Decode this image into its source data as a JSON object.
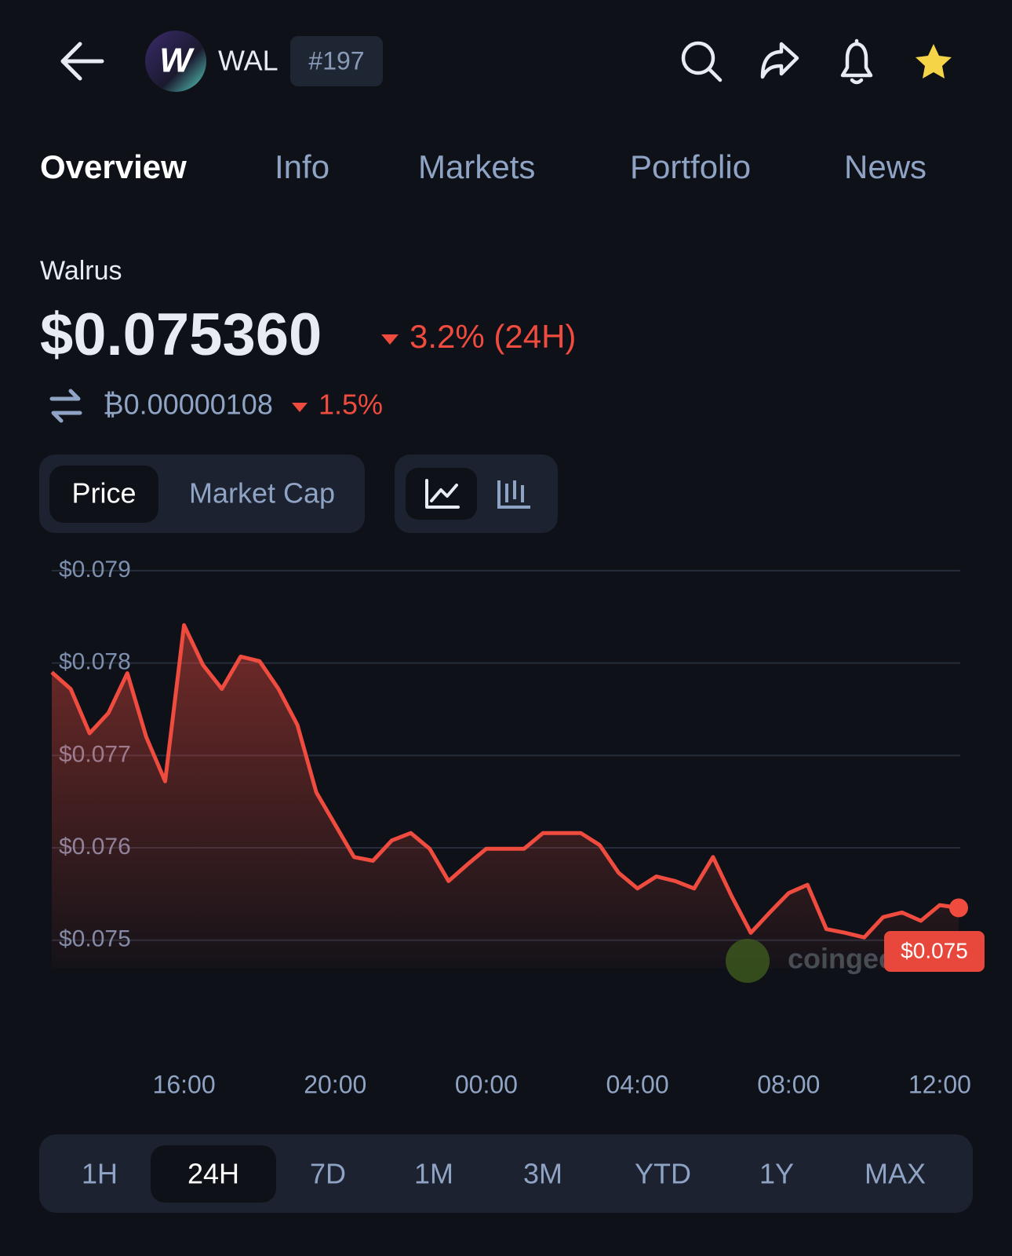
{
  "header": {
    "symbol": "WAL",
    "rank": "#197"
  },
  "tabs": [
    "Overview",
    "Info",
    "Markets",
    "Portfolio",
    "News"
  ],
  "active_tab": "Overview",
  "coin_name": "Walrus",
  "price": "$0.075360",
  "change_24h": "3.2% (24H)",
  "btc_price": "₿0.00000108",
  "btc_change": "1.5%",
  "chart_toggle": [
    "Price",
    "Market Cap"
  ],
  "active_toggle": "Price",
  "ranges": [
    "1H",
    "24H",
    "7D",
    "1M",
    "3M",
    "YTD",
    "1Y",
    "MAX"
  ],
  "active_range": "24H",
  "chart_data": {
    "type": "line",
    "categories": [
      null,
      null,
      null,
      null,
      null,
      null,
      null,
      "16:00",
      null,
      null,
      null,
      null,
      null,
      null,
      null,
      "20:00",
      null,
      null,
      null,
      null,
      null,
      null,
      null,
      "00:00",
      null,
      null,
      null,
      null,
      null,
      null,
      null,
      "04:00",
      null,
      null,
      null,
      null,
      null,
      null,
      null,
      "08:00",
      null,
      null,
      null,
      null,
      null,
      null,
      null,
      "12:00",
      null
    ],
    "values": [
      0.0779,
      0.07772,
      0.07724,
      0.07746,
      0.07789,
      0.0772,
      0.07672,
      0.07841,
      0.07798,
      0.07772,
      0.07807,
      0.07802,
      0.07772,
      0.07733,
      0.0766,
      0.07625,
      0.0759,
      0.07586,
      0.07608,
      0.07616,
      0.07599,
      0.07564,
      0.07582,
      0.07599,
      0.07599,
      0.07599,
      0.07616,
      0.07616,
      0.07616,
      0.07603,
      0.07573,
      0.07556,
      0.07569,
      0.07564,
      0.07556,
      0.0759,
      0.07547,
      0.07508,
      0.0753,
      0.07551,
      0.0756,
      0.07512,
      0.07508,
      0.07503,
      0.07525,
      0.0753,
      0.07521,
      0.07538,
      0.07535
    ],
    "color": "#ef4b3f",
    "ylim": [
      0.0747,
      0.079
    ],
    "yticks": [
      {
        "value": 0.075,
        "label": "$0.075"
      },
      {
        "value": 0.076,
        "label": "$0.076"
      },
      {
        "value": 0.077,
        "label": "$0.077"
      },
      {
        "value": 0.078,
        "label": "$0.078"
      },
      {
        "value": 0.079,
        "label": "$0.079"
      }
    ],
    "grid": true,
    "current_price_label": "$0.075",
    "watermark": "coingecko"
  }
}
